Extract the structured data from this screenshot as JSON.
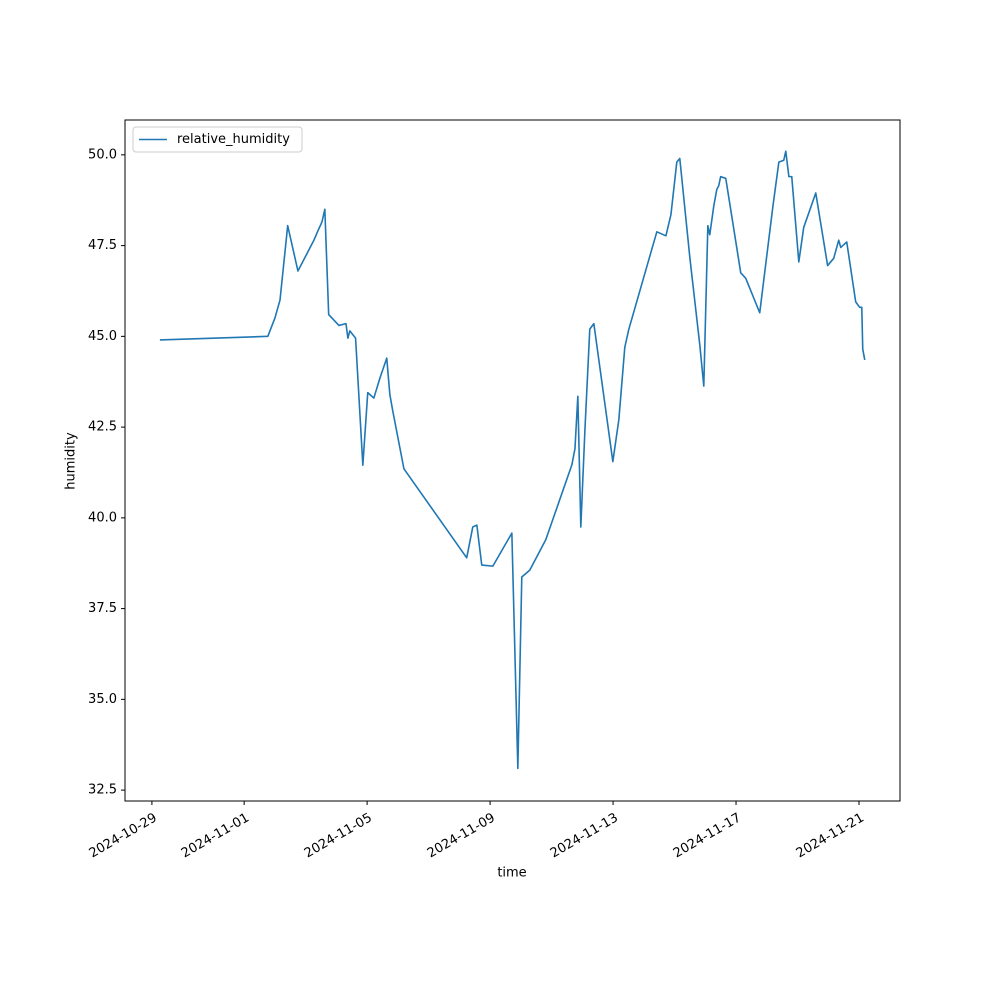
{
  "chart_data": {
    "type": "line",
    "xlabel": "time",
    "ylabel": "humidity",
    "x": [
      "2024-10-29 06:15",
      "2024-11-01 18:30",
      "2024-11-02 00:00",
      "2024-11-02 04:00",
      "2024-11-02 10:00",
      "2024-11-02 18:00",
      "2024-11-03 06:30",
      "2024-11-03 09:30",
      "2024-11-03 12:45",
      "2024-11-03 15:00",
      "2024-11-03 18:00",
      "2024-11-04 02:00",
      "2024-11-04 07:30",
      "2024-11-04 09:00",
      "2024-11-04 10:30",
      "2024-11-04 15:00",
      "2024-11-04 20:40",
      "2024-11-05 00:30",
      "2024-11-05 05:15",
      "2024-11-05 10:00",
      "2024-11-05 15:20",
      "2024-11-05 17:45",
      "2024-11-05 20:00",
      "2024-11-06 04:45",
      "2024-11-08 05:45",
      "2024-11-08 10:30",
      "2024-11-08 13:40",
      "2024-11-08 17:30",
      "2024-11-09 02:10",
      "2024-11-09 17:00",
      "2024-11-09 21:40",
      "2024-11-10 00:45",
      "2024-11-10 07:00",
      "2024-11-10 19:30",
      "2024-11-11 15:50",
      "2024-11-11 18:15",
      "2024-11-11 20:30",
      "2024-11-11 22:50",
      "2024-11-12 02:00",
      "2024-11-12 05:50",
      "2024-11-12 09:00",
      "2024-11-12 23:50",
      "2024-11-13 04:30",
      "2024-11-13 09:10",
      "2024-11-13 12:20",
      "2024-11-14 10:10",
      "2024-11-14 17:15",
      "2024-11-14 21:10",
      "2024-11-15 01:45",
      "2024-11-15 04:05",
      "2024-11-15 12:00",
      "2024-11-15 19:45",
      "2024-11-15 22:50",
      "2024-11-16 02:00",
      "2024-11-16 03:30",
      "2024-11-16 06:40",
      "2024-11-16 09:00",
      "2024-11-16 10:30",
      "2024-11-16 12:00",
      "2024-11-16 16:00",
      "2024-11-17 03:40",
      "2024-11-17 07:35",
      "2024-11-17 18:30",
      "2024-11-18 04:40",
      "2024-11-18 09:25",
      "2024-11-18 13:15",
      "2024-11-18 14:50",
      "2024-11-18 17:15",
      "2024-11-18 19:30",
      "2024-11-19 01:00",
      "2024-11-19 04:50",
      "2024-11-19 14:15",
      "2024-11-19 23:30",
      "2024-11-20 04:15",
      "2024-11-20 08:10",
      "2024-11-20 09:45",
      "2024-11-20 14:25",
      "2024-11-20 21:25",
      "2024-11-21 00:30",
      "2024-11-21 02:10",
      "2024-11-21 02:55",
      "2024-11-21 04:30"
    ],
    "series": [
      {
        "name": "relative_humidity",
        "color": "#1f77b4",
        "values": [
          44.9,
          45.0,
          45.5,
          46.0,
          48.05,
          46.8,
          47.65,
          47.9,
          48.15,
          48.5,
          45.6,
          45.3,
          45.35,
          44.95,
          45.15,
          44.95,
          41.45,
          43.45,
          43.3,
          43.85,
          44.4,
          43.4,
          42.95,
          41.35,
          38.9,
          39.75,
          39.8,
          38.7,
          38.67,
          39.58,
          33.1,
          38.37,
          38.56,
          39.4,
          41.46,
          41.9,
          43.35,
          39.75,
          42.4,
          45.2,
          45.35,
          41.55,
          42.7,
          44.7,
          45.2,
          47.88,
          47.77,
          48.35,
          49.8,
          49.9,
          47.15,
          44.75,
          43.63,
          48.05,
          47.8,
          48.6,
          49.05,
          49.15,
          49.4,
          49.35,
          46.75,
          46.6,
          45.65,
          48.55,
          49.8,
          49.85,
          50.1,
          49.4,
          49.4,
          47.05,
          48.0,
          48.95,
          46.95,
          47.15,
          47.65,
          47.45,
          47.6,
          45.95,
          45.8,
          45.8,
          44.65,
          44.35
        ]
      }
    ],
    "xlim": [
      "2024-10-28 03:00",
      "2024-11-22 08:00"
    ],
    "xticks": [
      "2024-10-29",
      "2024-11-01",
      "2024-11-05",
      "2024-11-09",
      "2024-11-13",
      "2024-11-17",
      "2024-11-21"
    ],
    "ylim": [
      32.2,
      50.96
    ],
    "yticks": [
      32.5,
      {
        "value": 35,
        "label": "35.0"
      },
      37.5,
      {
        "value": 40,
        "label": "40.0"
      },
      42.5,
      {
        "value": 45,
        "label": "45.0"
      },
      47.5,
      {
        "value": 50,
        "label": "50.0"
      }
    ],
    "grid": false,
    "legend": "upper left"
  }
}
